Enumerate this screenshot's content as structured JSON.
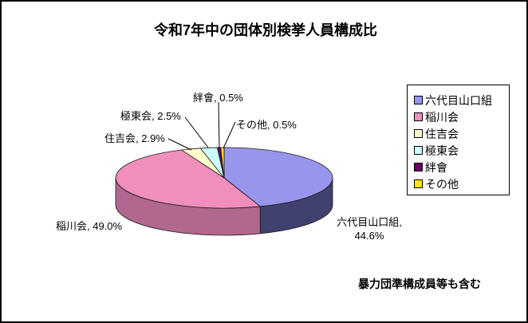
{
  "title": "令和7年中の団体別検挙人員構成比",
  "footnote": "暴力団準構成員等も含む",
  "chart_data": {
    "type": "pie",
    "style": "3d",
    "title": "令和7年中の団体別検挙人員構成比",
    "unit": "%",
    "start_angle": 0,
    "direction": "clockwise",
    "legend_position": "right",
    "categories": [
      "六代目山口組",
      "稲川会",
      "住吉会",
      "極東会",
      "絆會",
      "その他"
    ],
    "values": [
      44.6,
      49.0,
      2.9,
      2.5,
      0.5,
      0.5
    ],
    "colors": [
      "#9896EC",
      "#F08FBC",
      "#FFFFCC",
      "#CCFFFF",
      "#660066",
      "#FFE800"
    ],
    "side_colors": [
      "#41416F",
      "#B2688E",
      "#BFBF8C",
      "#8CBFBF",
      "#330033",
      "#999900"
    ]
  },
  "labels": {
    "yamaguchi_line1": "六代目山口組,",
    "yamaguchi_line2": "44.6%",
    "inagawa": "稲川会, 49.0%",
    "sumiyoshi": "住吉会, 2.9%",
    "kyokuto": "極東会, 2.5%",
    "kizuna": "絆會, 0.5%",
    "sonota": "その他, 0.5%"
  },
  "legend": {
    "items": [
      "六代目山口組",
      "稲川会",
      "住吉会",
      "極東会",
      "絆會",
      "その他"
    ]
  }
}
